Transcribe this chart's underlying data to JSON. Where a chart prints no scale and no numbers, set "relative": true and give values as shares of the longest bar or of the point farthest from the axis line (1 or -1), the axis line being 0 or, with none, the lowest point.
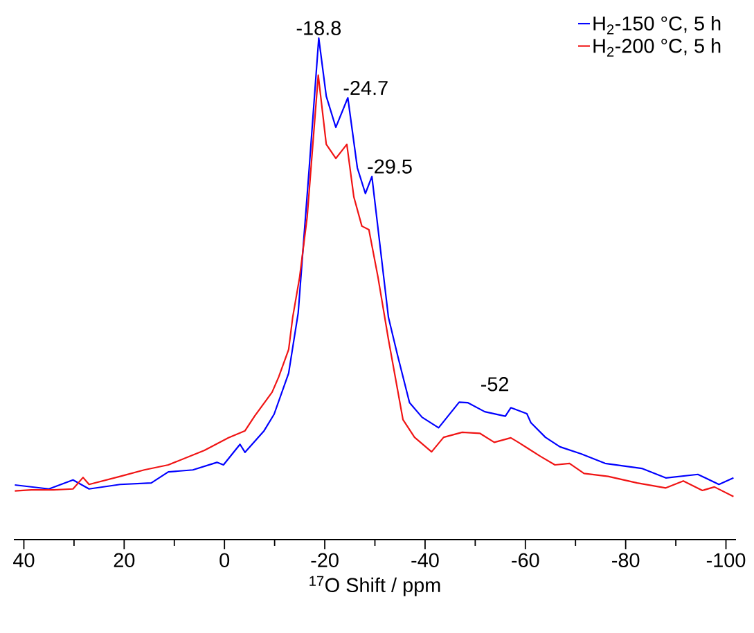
{
  "chart_data": {
    "type": "line",
    "relative": true,
    "xlabel": "$^{17}$O Shift / ppm",
    "xlim": [
      42,
      -102
    ],
    "xticks": [
      40,
      {
        "value": 30,
        "label": null
      },
      20,
      {
        "value": 10,
        "label": null
      },
      0,
      {
        "value": -10,
        "label": null
      },
      -20,
      {
        "value": -30,
        "label": null
      },
      -40,
      {
        "value": -50,
        "label": null
      },
      -60,
      {
        "value": -70,
        "label": null
      },
      -80,
      {
        "value": -90,
        "label": null
      },
      -100
    ],
    "legend": "top right",
    "series": [
      {
        "name": "H$_{2}$-150 °C, 5 h",
        "color": "#0000ff",
        "x": [
          41.8,
          35,
          30.2,
          27,
          20.8,
          14.6,
          11.2,
          6.3,
          1.5,
          0.2,
          -3.1,
          -4.1,
          -7.9,
          -9.9,
          -12.8,
          -14.7,
          -16.9,
          -18.8,
          -20.3,
          -22.2,
          -24.6,
          -26.5,
          -28.1,
          -29.4,
          -32.7,
          -34.6,
          -36.9,
          -39.4,
          -42.7,
          -46.8,
          -48.5,
          -51.9,
          -56,
          -57.1,
          -60.3,
          -61.1,
          -64,
          -66.9,
          -71.1,
          -75.9,
          -83.2,
          -88,
          -94.4,
          -98.6,
          -101.5
        ],
        "values": [
          0.109,
          0.101,
          0.119,
          0.101,
          0.11,
          0.113,
          0.135,
          0.139,
          0.154,
          0.149,
          0.19,
          0.174,
          0.217,
          0.25,
          0.332,
          0.452,
          0.741,
          1,
          0.884,
          0.822,
          0.881,
          0.741,
          0.69,
          0.724,
          0.443,
          0.364,
          0.273,
          0.244,
          0.223,
          0.274,
          0.273,
          0.255,
          0.246,
          0.263,
          0.251,
          0.233,
          0.204,
          0.185,
          0.171,
          0.152,
          0.142,
          0.123,
          0.13,
          0.11,
          0.123
        ]
      },
      {
        "name": "H$_{2}$-200 °C, 5 h",
        "color": "#f01414",
        "x": [
          41.8,
          38.5,
          34.1,
          30.2,
          28.2,
          27,
          20.8,
          16,
          11.2,
          4,
          -0.8,
          -4.1,
          -6,
          -9.5,
          -10.8,
          -12.8,
          -13.6,
          -15,
          -16.5,
          -18.7,
          -20.3,
          -22.2,
          -23.3,
          -24.4,
          -25.8,
          -27.4,
          -28.8,
          -30.6,
          -32.7,
          -35.6,
          -37.9,
          -41.3,
          -43.7,
          -47.4,
          -50.9,
          -53.8,
          -57.1,
          -58.6,
          -63,
          -65.9,
          -68.8,
          -71.7,
          -76.5,
          -82.3,
          -88,
          -91.5,
          -95.3,
          -97.7,
          -101.5
        ],
        "values": [
          0.097,
          0.099,
          0.099,
          0.101,
          0.124,
          0.11,
          0.126,
          0.139,
          0.149,
          0.178,
          0.203,
          0.217,
          0.246,
          0.294,
          0.324,
          0.379,
          0.443,
          0.524,
          0.644,
          0.926,
          0.788,
          0.76,
          0.774,
          0.788,
          0.683,
          0.625,
          0.618,
          0.524,
          0.399,
          0.239,
          0.204,
          0.175,
          0.204,
          0.214,
          0.212,
          0.194,
          0.203,
          0.194,
          0.166,
          0.149,
          0.152,
          0.132,
          0.126,
          0.113,
          0.103,
          0.117,
          0.098,
          0.105,
          0.086
        ]
      }
    ],
    "annotations": [
      {
        "text": "-18.8",
        "x": -18.8,
        "y": 1
      },
      {
        "text": "-24.7",
        "x": -24.7,
        "y": 0.881
      },
      {
        "text": "-29.5",
        "x": -29.5,
        "y": 0.724
      },
      "-52"
    ]
  }
}
